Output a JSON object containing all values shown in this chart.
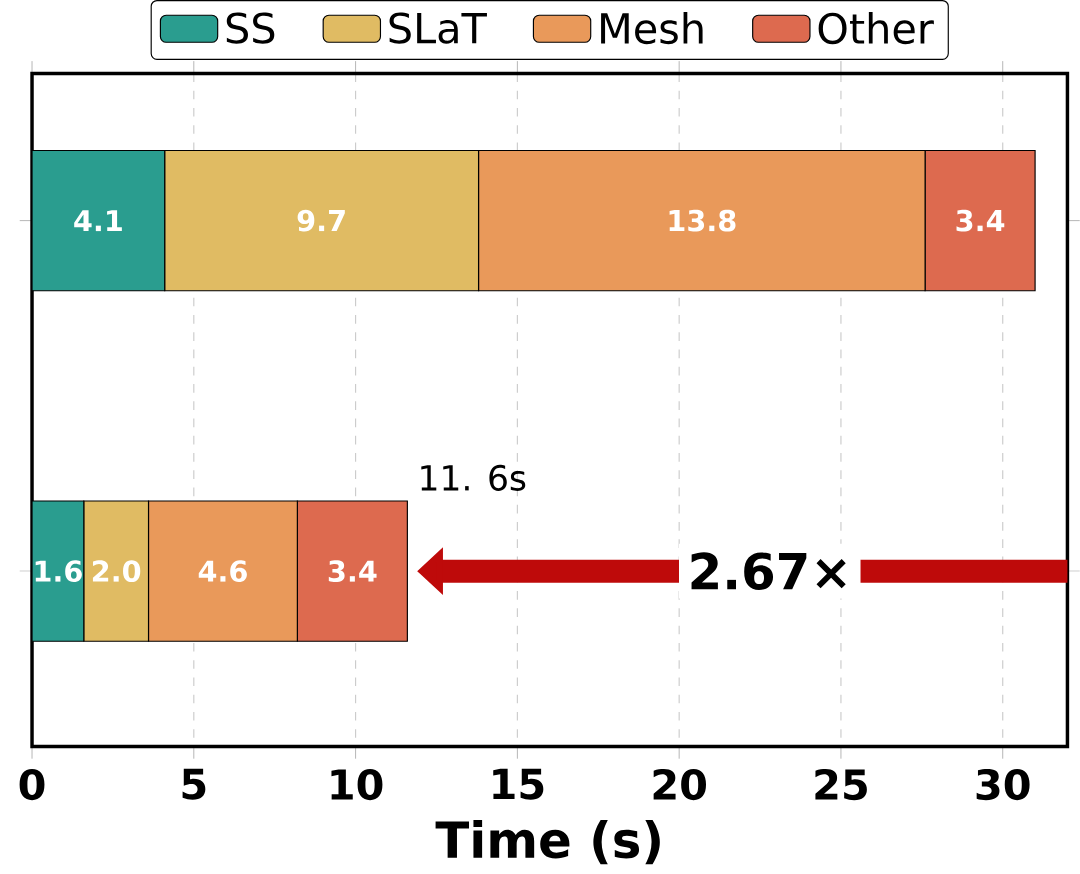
{
  "chart_data": {
    "type": "bar",
    "orientation": "horizontal",
    "stacked": true,
    "categories": [
      null,
      null
    ],
    "series": [
      {
        "name": "SS",
        "color": "#2a9d8f",
        "values": [
          4.1,
          1.6
        ],
        "value_labels": [
          "4.1",
          "1.6"
        ]
      },
      {
        "name": "SLaT",
        "color": "#e0bb63",
        "values": [
          9.7,
          2.0
        ],
        "value_labels": [
          "9.7",
          "2.0"
        ]
      },
      {
        "name": "Mesh",
        "color": "#e9995a",
        "values": [
          13.8,
          4.6
        ],
        "value_labels": [
          "13.8",
          "4.6"
        ]
      },
      {
        "name": "Other",
        "color": "#dd6a4f",
        "values": [
          3.4,
          3.4
        ],
        "value_labels": [
          "3.4",
          "3.4"
        ]
      }
    ],
    "xlabel": "Time (s)",
    "xlim": [
      0,
      32
    ],
    "xticks": [
      0,
      5,
      10,
      15,
      20,
      25,
      30
    ],
    "grid": "x",
    "legend": "top",
    "annotations": [
      "11. 6s",
      "2.67×"
    ]
  }
}
